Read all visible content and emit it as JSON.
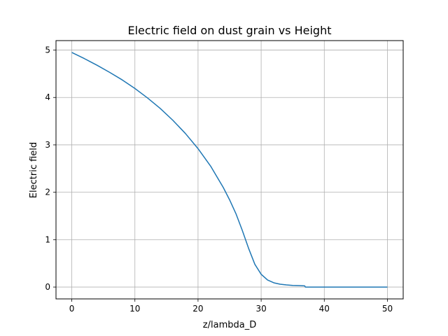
{
  "chart_data": {
    "type": "line",
    "title": "Electric field on dust grain vs Height",
    "xlabel": "z/lambda_D",
    "ylabel": "Electric field",
    "xlim": [
      -2.5,
      52.5
    ],
    "ylim": [
      -0.25,
      5.2
    ],
    "xticks": [
      0,
      10,
      20,
      30,
      40,
      50
    ],
    "yticks": [
      0,
      1,
      2,
      3,
      4,
      5
    ],
    "grid": true,
    "line_color": "#1f77b4",
    "series": [
      {
        "x": [
          0,
          2,
          4,
          6,
          8,
          10,
          12,
          14,
          16,
          18,
          20,
          22,
          24,
          25,
          26,
          27,
          28,
          29,
          30,
          31,
          32,
          33,
          34,
          35,
          36,
          36.9,
          37,
          38,
          40,
          42,
          44,
          46,
          48,
          50
        ],
        "y": [
          4.95,
          4.82,
          4.68,
          4.53,
          4.37,
          4.19,
          3.99,
          3.77,
          3.52,
          3.24,
          2.92,
          2.55,
          2.1,
          1.84,
          1.55,
          1.2,
          0.82,
          0.48,
          0.27,
          0.15,
          0.09,
          0.06,
          0.045,
          0.035,
          0.03,
          0.025,
          0.0,
          0.0,
          0.0,
          0.0,
          0.0,
          0.0,
          0.0,
          0.0
        ]
      }
    ]
  }
}
